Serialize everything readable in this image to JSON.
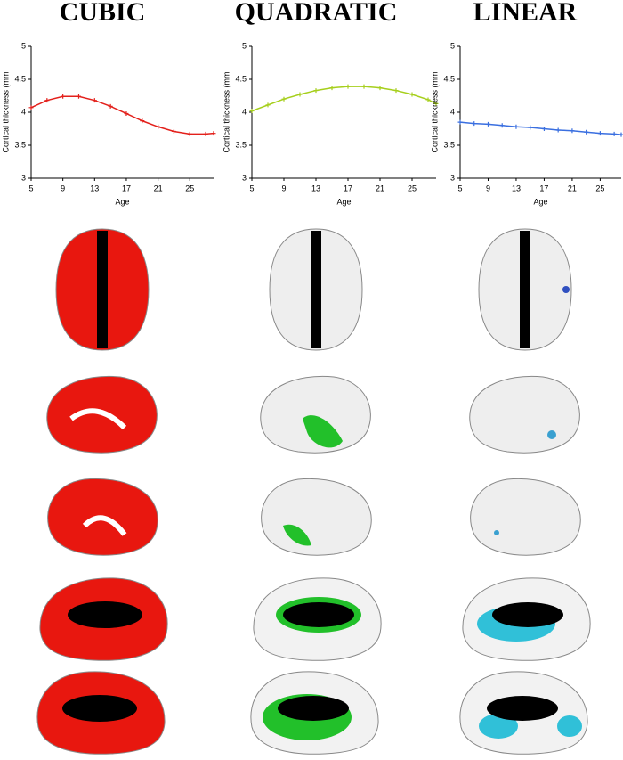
{
  "chart_data": [
    {
      "type": "line",
      "title": "CUBIC",
      "ylabel": "Cortical thickness (mm",
      "xlabel": "Age",
      "x": [
        5,
        7,
        9,
        11,
        13,
        15,
        17,
        19,
        21,
        23,
        25,
        27,
        28
      ],
      "values": [
        4.07,
        4.18,
        4.24,
        4.24,
        4.18,
        4.09,
        3.98,
        3.87,
        3.78,
        3.71,
        3.67,
        3.67,
        3.68
      ],
      "color": "#e3201b",
      "xlim": [
        5,
        28
      ],
      "xticks": [
        5,
        9,
        13,
        17,
        21,
        25
      ],
      "ylim": [
        3,
        5
      ],
      "yticks": [
        3,
        3.5,
        4,
        4.5,
        5
      ]
    },
    {
      "type": "line",
      "title": "QUADRATIC",
      "ylabel": "Cortical thickness (mm",
      "xlabel": "Age",
      "x": [
        5,
        7,
        9,
        11,
        13,
        15,
        17,
        19,
        21,
        23,
        25,
        27,
        28
      ],
      "values": [
        4.02,
        4.11,
        4.2,
        4.27,
        4.33,
        4.37,
        4.39,
        4.39,
        4.37,
        4.33,
        4.27,
        4.19,
        4.13
      ],
      "color": "#a6cf1c",
      "xlim": [
        5,
        28
      ],
      "xticks": [
        5,
        9,
        13,
        17,
        21,
        25
      ],
      "ylim": [
        3,
        5
      ],
      "yticks": [
        3,
        3.5,
        4,
        4.5,
        5
      ]
    },
    {
      "type": "line",
      "title": "LINEAR",
      "ylabel": "Cortical thickness (mm",
      "xlabel": "Age",
      "x": [
        5,
        7,
        9,
        11,
        13,
        15,
        17,
        19,
        21,
        23,
        25,
        27,
        28
      ],
      "values": [
        3.85,
        3.83,
        3.82,
        3.8,
        3.78,
        3.77,
        3.75,
        3.73,
        3.72,
        3.7,
        3.68,
        3.67,
        3.66
      ],
      "color": "#3a6fe0",
      "xlim": [
        5,
        28
      ],
      "xticks": [
        5,
        9,
        13,
        17,
        21,
        25
      ],
      "ylim": [
        3,
        5
      ],
      "yticks": [
        3,
        3.5,
        4,
        4.5,
        5
      ]
    }
  ]
}
